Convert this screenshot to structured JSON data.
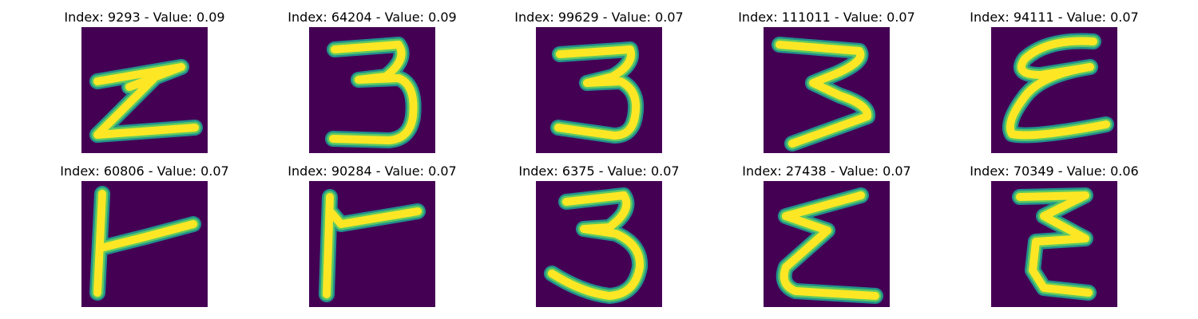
{
  "colors": {
    "background": "#440154",
    "glow_outer": "#21918c",
    "glow_inner": "#5ec962",
    "stroke": "#fde725"
  },
  "panels": [
    {
      "title": "Index: 9293 - Value: 0.09",
      "glyph": "Z-like handwritten character"
    },
    {
      "title": "Index: 64204 - Value: 0.09",
      "glyph": "3"
    },
    {
      "title": "Index: 99629 - Value: 0.07",
      "glyph": "3"
    },
    {
      "title": "Index: 111011 - Value: 0.07",
      "glyph": "3"
    },
    {
      "title": "Index: 94111 - Value: 0.07",
      "glyph": "ε-like handwritten character"
    },
    {
      "title": "Index: 60806 - Value: 0.07",
      "glyph": "F-like handwritten character"
    },
    {
      "title": "Index: 90284 - Value: 0.07",
      "glyph": "F-like handwritten character"
    },
    {
      "title": "Index: 6375 - Value: 0.07",
      "glyph": "3"
    },
    {
      "title": "Index: 27438 - Value: 0.07",
      "glyph": "Σ-like handwritten character"
    },
    {
      "title": "Index: 70349 - Value: 0.06",
      "glyph": "E-like handwritten character"
    }
  ]
}
